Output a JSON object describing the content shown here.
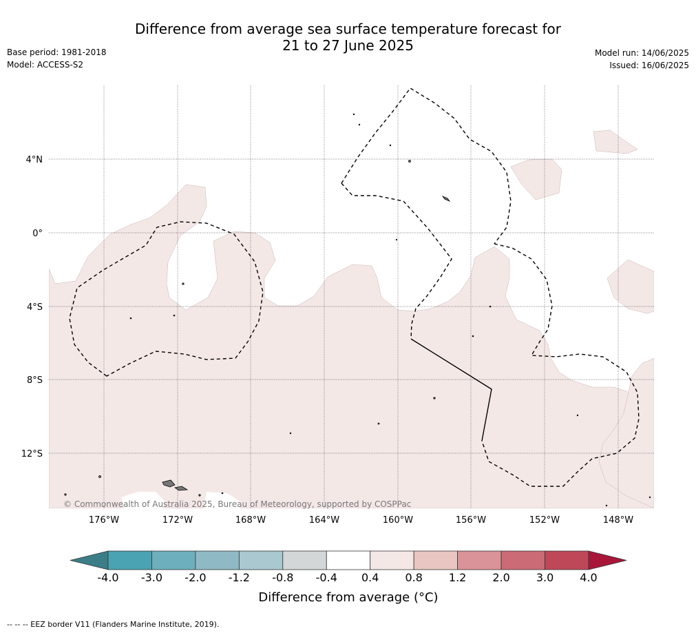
{
  "title": {
    "line1": "Difference from average sea surface temperature forecast for",
    "line2": "21 to 27 June 2025"
  },
  "meta_left": {
    "base_period": "Base period: 1981-2018",
    "model": "Model: ACCESS-S2"
  },
  "meta_right": {
    "model_run": "Model run: 14/06/2025",
    "issued": "Issued: 16/06/2025"
  },
  "map": {
    "lat_labels": [
      "4°N",
      "0°",
      "4°S",
      "8°S",
      "12°S"
    ],
    "lon_labels": [
      "176°W",
      "172°W",
      "168°W",
      "164°W",
      "160°W",
      "156°W",
      "152°W",
      "148°W"
    ],
    "copyright": "© Commonwealth of Australia 2025, Bureau of Meteorology, supported by COSPPac",
    "anomaly_fill_color": "#f4e8e7",
    "eez_line_color": "#000000"
  },
  "colorbar": {
    "title": "Difference from average (°C)",
    "tick_labels": [
      "-4.0",
      "-3.0",
      "-2.0",
      "-1.2",
      "-0.8",
      "-0.4",
      "0.4",
      "0.8",
      "1.2",
      "2.0",
      "3.0",
      "4.0"
    ],
    "low_extend_color": "#3b7e87",
    "high_extend_color": "#a8173a",
    "colors": [
      "#4aa3b3",
      "#6eafbd",
      "#8fbac5",
      "#a9c8cf",
      "#d4d7d8",
      "#ffffff",
      "#f4e8e7",
      "#e9c6c2",
      "#d99399",
      "#cb6b76",
      "#be4858"
    ]
  },
  "footnote": "-- -- -- EEZ border V11 (Flanders Marine Institute, 2019)."
}
